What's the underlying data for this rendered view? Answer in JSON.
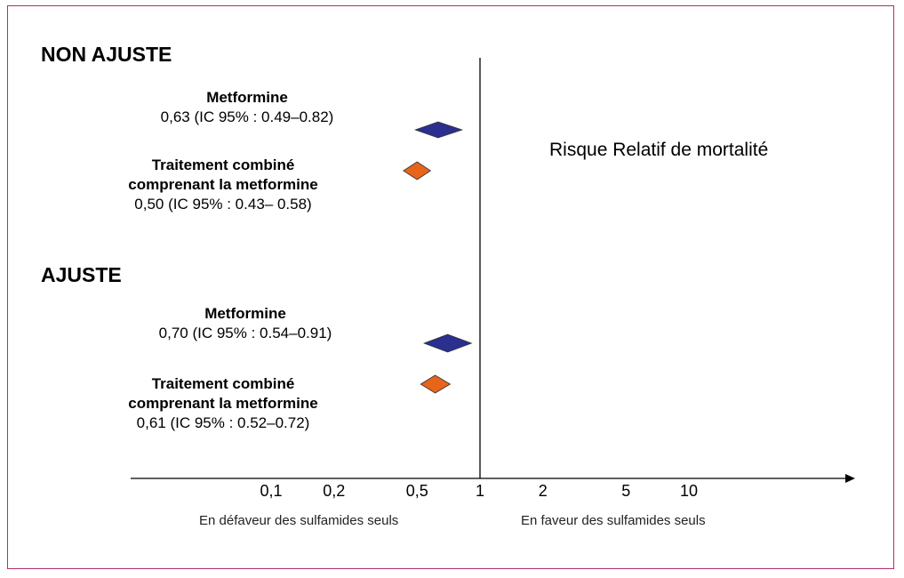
{
  "chart_data": {
    "type": "forest",
    "title": "Risque Relatif de mortalité",
    "x_axis": {
      "scale": "log",
      "ticks": [
        0.1,
        0.2,
        0.5,
        1,
        2,
        5,
        10
      ],
      "tick_labels": [
        "0,1",
        "0,2",
        "0,5",
        "1",
        "2",
        "5",
        "10"
      ],
      "reference_line": 1,
      "left_label": "En défaveur des sulfamides seuls",
      "right_label": "En faveur des sulfamides seuls"
    },
    "groups": [
      {
        "title": "NON AJUSTE",
        "rows": [
          {
            "name": "Metformine",
            "name_lines": [
              "Metformine"
            ],
            "estimate_text": "0,63 (IC 95% : 0.49–0.82)",
            "estimate": 0.63,
            "ci_low": 0.49,
            "ci_high": 0.82,
            "color": "#2b2f8f"
          },
          {
            "name": "Traitement combiné comprenant la metformine",
            "name_lines": [
              "Traitement combiné",
              "comprenant la metformine"
            ],
            "estimate_text": "0,50 (IC 95% : 0.43– 0.58)",
            "estimate": 0.5,
            "ci_low": 0.43,
            "ci_high": 0.58,
            "color": "#e8641b"
          }
        ]
      },
      {
        "title": "AJUSTE",
        "rows": [
          {
            "name": "Metformine",
            "name_lines": [
              "Metformine"
            ],
            "estimate_text": "0,70 (IC 95% : 0.54–0.91)",
            "estimate": 0.7,
            "ci_low": 0.54,
            "ci_high": 0.91,
            "color": "#2b2f8f"
          },
          {
            "name": "Traitement combiné comprenant la metformine",
            "name_lines": [
              "Traitement combiné",
              "comprenant la metformine"
            ],
            "estimate_text": "0,61 (IC 95% : 0.52–0.72)",
            "estimate": 0.61,
            "ci_low": 0.52,
            "ci_high": 0.72,
            "color": "#e8641b"
          }
        ]
      }
    ]
  }
}
